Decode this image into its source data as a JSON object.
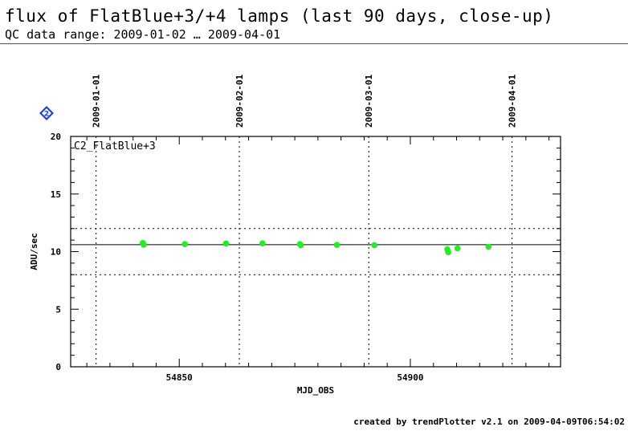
{
  "header": {
    "title": "flux of FlatBlue+3/+4 lamps (last 90 days, close-up)",
    "subtitle": "QC data range: 2009-01-02 … 2009-04-01"
  },
  "badge": {
    "label": "2",
    "icon": "diamond-badge-icon",
    "color": "#1f3fd6"
  },
  "footer": {
    "text": "created by trendPlotter v2.1 on 2009-04-09T06:54:02"
  },
  "chart_data": {
    "type": "scatter",
    "title": "",
    "panel_label": "C2_FlatBlue+3",
    "xlabel": "MJD_OBS",
    "ylabel": "ADU/sec",
    "xlim": [
      54826.5,
      54932.5
    ],
    "ylim": [
      0,
      20
    ],
    "xticks_major": [
      54850,
      54900
    ],
    "xticks_minor_step": 5,
    "yticks_major": [
      0,
      5,
      10,
      15,
      20
    ],
    "yticks_minor_step": 1,
    "date_markers": [
      {
        "label": "2009-01-01",
        "mjd": 54832
      },
      {
        "label": "2009-02-01",
        "mjd": 54863
      },
      {
        "label": "2009-03-01",
        "mjd": 54891
      },
      {
        "label": "2009-04-01",
        "mjd": 54922
      }
    ],
    "reference_line": 10.6,
    "limit_lines": [
      8.0,
      12.0
    ],
    "marker_color": "#22ee22",
    "series": [
      {
        "x": [
          54842.1,
          54842.3,
          54851.2,
          54860.1,
          54868.0,
          54876.1,
          54876.3,
          54884.1,
          54892.2,
          54908.0,
          54908.2,
          54910.2,
          54916.9
        ],
        "y": [
          10.75,
          10.6,
          10.65,
          10.7,
          10.72,
          10.65,
          10.55,
          10.58,
          10.55,
          10.2,
          9.95,
          10.28,
          10.42
        ]
      }
    ]
  }
}
